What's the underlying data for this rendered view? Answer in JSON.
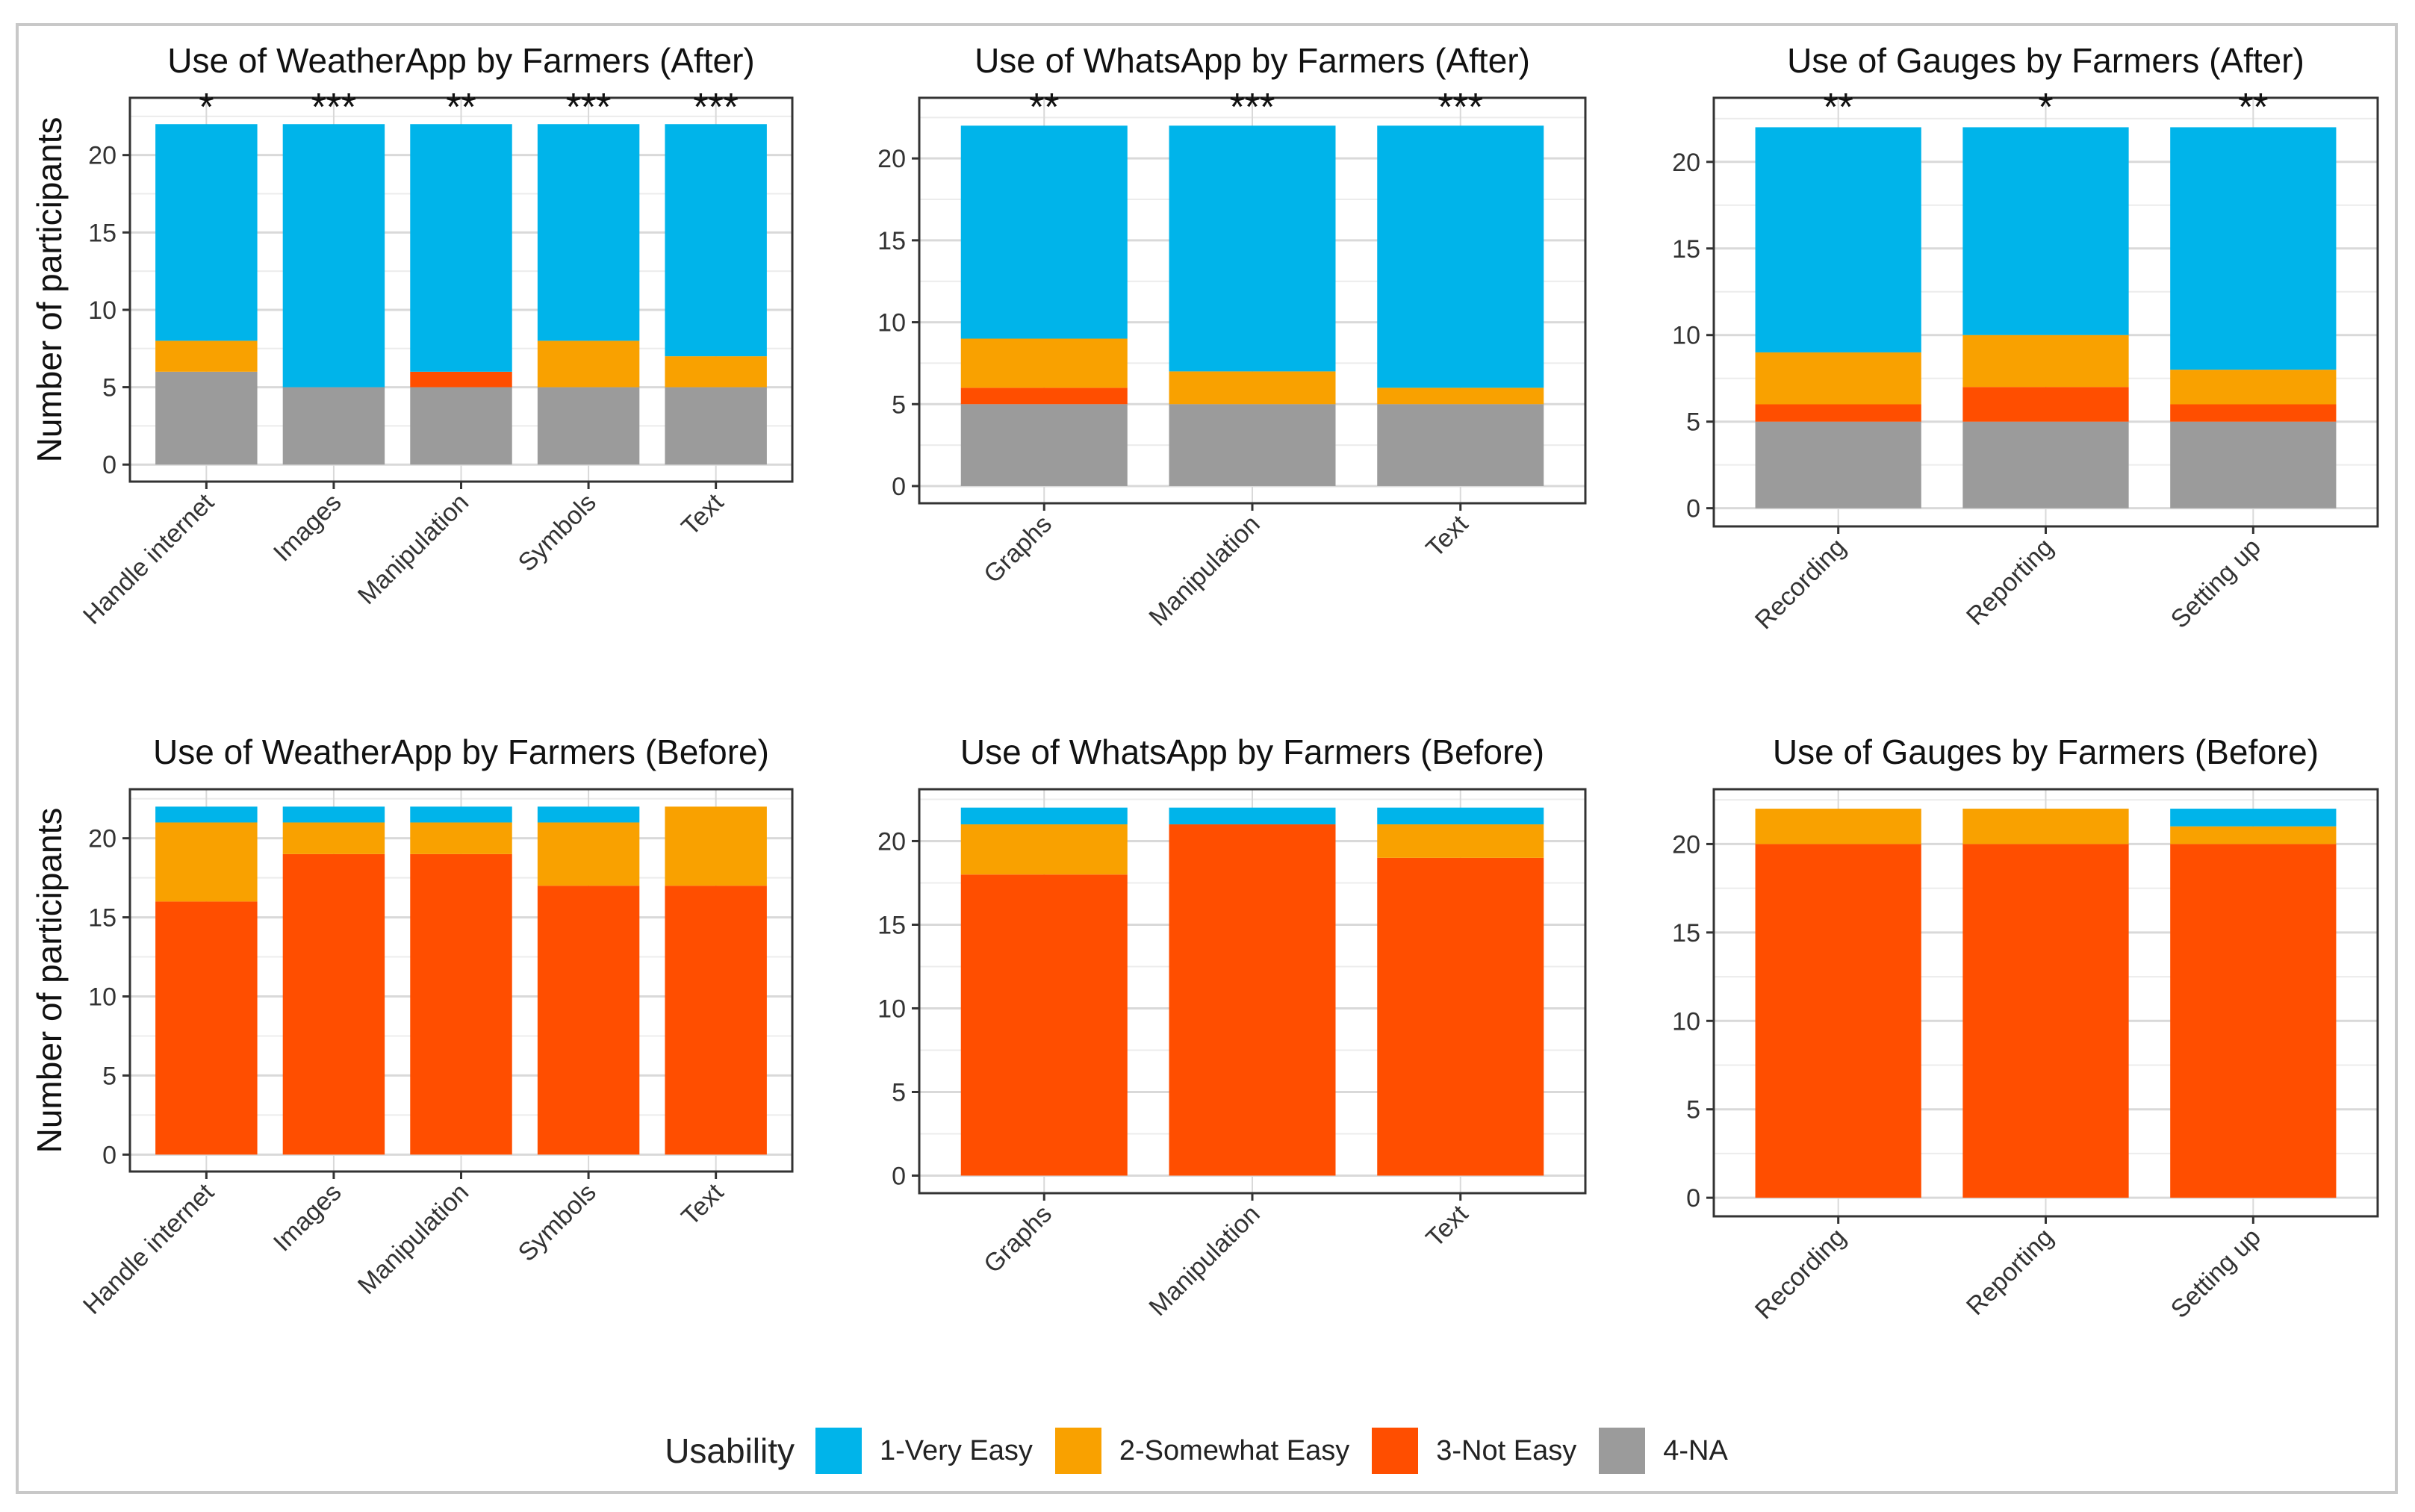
{
  "colors": {
    "1-Very Easy": "#00B4EA",
    "2-Somewhat Easy": "#F9A100",
    "3-Not Easy": "#FF4E00",
    "4-NA": "#9B9B9B"
  },
  "legend": {
    "title": "Usability",
    "items": [
      "1-Very Easy",
      "2-Somewhat Easy",
      "3-Not Easy",
      "4-NA"
    ]
  },
  "chart_data": [
    {
      "type": "bar",
      "stacked": true,
      "title": "Use of WeatherApp by Farmers (After)",
      "ylabel": "Number of participants",
      "ylim": [
        0,
        22
      ],
      "yticks": [
        0,
        5,
        10,
        15,
        20
      ],
      "categories": [
        "Handle internet",
        "Images",
        "Manipulation",
        "Symbols",
        "Text"
      ],
      "annotations": [
        "*",
        "***",
        "**",
        "***",
        "***"
      ],
      "series": [
        {
          "name": "4-NA",
          "values": [
            6,
            5,
            5,
            5,
            5
          ]
        },
        {
          "name": "3-Not Easy",
          "values": [
            0,
            0,
            1,
            0,
            0
          ]
        },
        {
          "name": "2-Somewhat Easy",
          "values": [
            2,
            0,
            0,
            3,
            2
          ]
        },
        {
          "name": "1-Very Easy",
          "values": [
            14,
            17,
            16,
            14,
            15
          ]
        }
      ]
    },
    {
      "type": "bar",
      "stacked": true,
      "title": "Use of WhatsApp by Farmers (After)",
      "ylabel": "",
      "ylim": [
        0,
        22
      ],
      "yticks": [
        0,
        5,
        10,
        15,
        20
      ],
      "categories": [
        "Graphs",
        "Manipulation",
        "Text"
      ],
      "annotations": [
        "**",
        "***",
        "***"
      ],
      "series": [
        {
          "name": "4-NA",
          "values": [
            5,
            5,
            5
          ]
        },
        {
          "name": "3-Not Easy",
          "values": [
            1,
            0,
            0
          ]
        },
        {
          "name": "2-Somewhat Easy",
          "values": [
            3,
            2,
            1
          ]
        },
        {
          "name": "1-Very Easy",
          "values": [
            13,
            15,
            16
          ]
        }
      ]
    },
    {
      "type": "bar",
      "stacked": true,
      "title": "Use of Gauges by Farmers (After)",
      "ylabel": "",
      "ylim": [
        0,
        22
      ],
      "yticks": [
        0,
        5,
        10,
        15,
        20
      ],
      "categories": [
        "Recording",
        "Reporting",
        "Setting up"
      ],
      "annotations": [
        "**",
        "*",
        "**"
      ],
      "series": [
        {
          "name": "4-NA",
          "values": [
            5,
            5,
            5
          ]
        },
        {
          "name": "3-Not Easy",
          "values": [
            1,
            2,
            1
          ]
        },
        {
          "name": "2-Somewhat Easy",
          "values": [
            3,
            3,
            2
          ]
        },
        {
          "name": "1-Very Easy",
          "values": [
            13,
            12,
            14
          ]
        }
      ]
    },
    {
      "type": "bar",
      "stacked": true,
      "title": "Use of WeatherApp by Farmers (Before)",
      "ylabel": "Number of participants",
      "ylim": [
        0,
        22
      ],
      "yticks": [
        0,
        5,
        10,
        15,
        20
      ],
      "categories": [
        "Handle internet",
        "Images",
        "Manipulation",
        "Symbols",
        "Text"
      ],
      "annotations": [],
      "series": [
        {
          "name": "4-NA",
          "values": [
            0,
            0,
            0,
            0,
            0
          ]
        },
        {
          "name": "3-Not Easy",
          "values": [
            16,
            19,
            19,
            17,
            17
          ]
        },
        {
          "name": "2-Somewhat Easy",
          "values": [
            5,
            2,
            2,
            4,
            5
          ]
        },
        {
          "name": "1-Very Easy",
          "values": [
            1,
            1,
            1,
            1,
            0
          ]
        }
      ]
    },
    {
      "type": "bar",
      "stacked": true,
      "title": "Use of WhatsApp by Farmers (Before)",
      "ylabel": "",
      "ylim": [
        0,
        22
      ],
      "yticks": [
        0,
        5,
        10,
        15,
        20
      ],
      "categories": [
        "Graphs",
        "Manipulation",
        "Text"
      ],
      "annotations": [],
      "series": [
        {
          "name": "4-NA",
          "values": [
            0,
            0,
            0
          ]
        },
        {
          "name": "3-Not Easy",
          "values": [
            18,
            21,
            19
          ]
        },
        {
          "name": "2-Somewhat Easy",
          "values": [
            3,
            0,
            2
          ]
        },
        {
          "name": "1-Very Easy",
          "values": [
            1,
            1,
            1
          ]
        }
      ]
    },
    {
      "type": "bar",
      "stacked": true,
      "title": "Use of Gauges by Farmers (Before)",
      "ylabel": "",
      "ylim": [
        0,
        22
      ],
      "yticks": [
        0,
        5,
        10,
        15,
        20
      ],
      "categories": [
        "Recording",
        "Reporting",
        "Setting up"
      ],
      "annotations": [],
      "series": [
        {
          "name": "4-NA",
          "values": [
            0,
            0,
            0
          ]
        },
        {
          "name": "3-Not Easy",
          "values": [
            20,
            20,
            20
          ]
        },
        {
          "name": "2-Somewhat Easy",
          "values": [
            2,
            2,
            1
          ]
        },
        {
          "name": "1-Very Easy",
          "values": [
            0,
            0,
            1
          ]
        }
      ]
    }
  ]
}
